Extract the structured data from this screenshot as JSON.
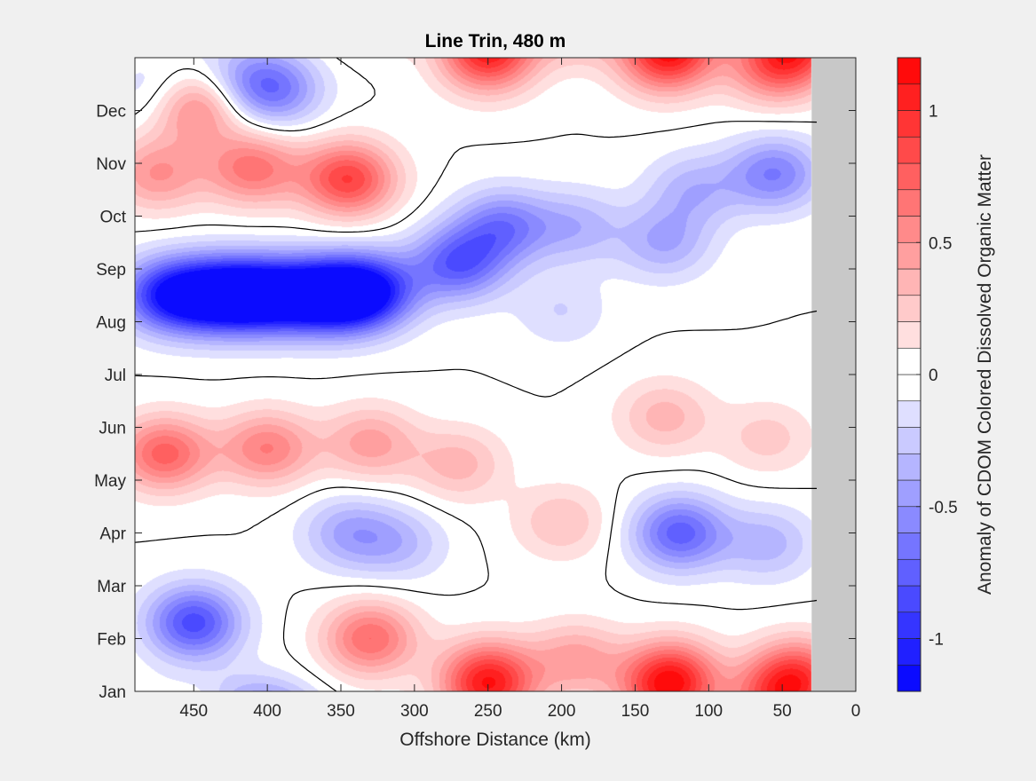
{
  "chart_data": {
    "type": "heatmap",
    "title": "Line Trin, 480 m",
    "xlabel": "Offshore Distance (km)",
    "ylabel": "",
    "x_axis": {
      "reversed": true,
      "lim": [
        0,
        490
      ],
      "ticks": [
        450,
        400,
        350,
        300,
        250,
        200,
        150,
        100,
        50,
        0
      ]
    },
    "y_axis": {
      "ticks": [
        "Jan",
        "Feb",
        "Mar",
        "Apr",
        "May",
        "Jun",
        "Jul",
        "Aug",
        "Sep",
        "Oct",
        "Nov",
        "Dec"
      ]
    },
    "no_data": {
      "x_range": [
        0,
        30
      ],
      "color": "#c8c8c8"
    },
    "colorbar": {
      "label": "Anomaly of CDOM Colored Dissolved Organic Matter",
      "lim": [
        -1.2,
        1.2
      ],
      "ticks": [
        -1,
        -0.5,
        0,
        0.5,
        1
      ],
      "tick_labels": [
        "-1",
        "-0.5",
        "0",
        "0.5",
        "1"
      ],
      "levels": 24,
      "low_color": "#0000ff",
      "zero_color": "#ffffff",
      "high_color": "#ff0000"
    },
    "zero_contour": true,
    "features": [
      {
        "x": 410,
        "month": 7.5,
        "value": -1.15
      },
      {
        "x": 440,
        "month": 7.5,
        "value": -0.95
      },
      {
        "x": 470,
        "month": 7.5,
        "value": -0.85
      },
      {
        "x": 375,
        "month": 7.5,
        "value": -1.0
      },
      {
        "x": 345,
        "month": 7.5,
        "value": -1.05
      },
      {
        "x": 325,
        "month": 7.6,
        "value": -0.6
      },
      {
        "x": 270,
        "month": 8.1,
        "value": -0.75
      },
      {
        "x": 240,
        "month": 8.8,
        "value": -0.6
      },
      {
        "x": 190,
        "month": 8.8,
        "value": -0.35
      },
      {
        "x": 130,
        "month": 8.5,
        "value": -0.4
      },
      {
        "x": 55,
        "month": 9.8,
        "value": -0.6
      },
      {
        "x": 110,
        "month": 9.5,
        "value": -0.35
      },
      {
        "x": 200,
        "month": 7.2,
        "value": -0.2
      },
      {
        "x": 120,
        "month": 3.0,
        "value": -0.75
      },
      {
        "x": 60,
        "month": 2.8,
        "value": -0.35
      },
      {
        "x": 345,
        "month": 3.0,
        "value": -0.4
      },
      {
        "x": 310,
        "month": 2.8,
        "value": -0.3
      },
      {
        "x": 450,
        "month": 1.3,
        "value": -0.85
      },
      {
        "x": 395,
        "month": 11.4,
        "value": -0.6
      },
      {
        "x": 470,
        "month": 11.3,
        "value": -0.35
      },
      {
        "x": 420,
        "month": 11.6,
        "value": -0.3
      },
      {
        "x": 345,
        "month": 9.7,
        "value": 0.9
      },
      {
        "x": 410,
        "month": 9.9,
        "value": 0.65
      },
      {
        "x": 475,
        "month": 9.8,
        "value": 0.5
      },
      {
        "x": 450,
        "month": 11.1,
        "value": 0.75
      },
      {
        "x": 470,
        "month": 4.5,
        "value": 0.75
      },
      {
        "x": 400,
        "month": 4.6,
        "value": 0.6
      },
      {
        "x": 330,
        "month": 4.7,
        "value": 0.45
      },
      {
        "x": 250,
        "month": 0.3,
        "value": 0.75
      },
      {
        "x": 125,
        "month": 0.3,
        "value": 0.8
      },
      {
        "x": 40,
        "month": 0.3,
        "value": 0.8
      },
      {
        "x": 330,
        "month": 1.0,
        "value": 0.7
      },
      {
        "x": 190,
        "month": 0.6,
        "value": 0.45
      },
      {
        "x": 250,
        "month": 11.9,
        "value": 0.45
      },
      {
        "x": 130,
        "month": 11.9,
        "value": 0.5
      },
      {
        "x": 55,
        "month": 11.8,
        "value": 0.6
      },
      {
        "x": 270,
        "month": 4.3,
        "value": 0.35
      },
      {
        "x": 130,
        "month": 5.2,
        "value": 0.35
      },
      {
        "x": 200,
        "month": 3.2,
        "value": 0.3
      },
      {
        "x": 60,
        "month": 4.8,
        "value": 0.25
      }
    ]
  }
}
